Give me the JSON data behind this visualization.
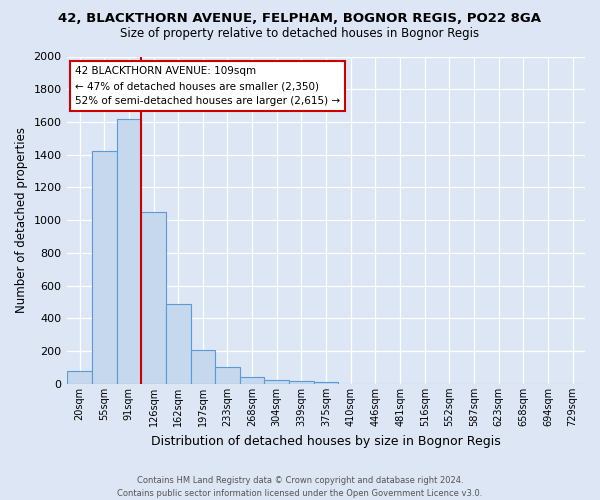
{
  "title": "42, BLACKTHORN AVENUE, FELPHAM, BOGNOR REGIS, PO22 8GA",
  "subtitle": "Size of property relative to detached houses in Bognor Regis",
  "xlabel": "Distribution of detached houses by size in Bognor Regis",
  "ylabel": "Number of detached properties",
  "footer_line1": "Contains HM Land Registry data © Crown copyright and database right 2024.",
  "footer_line2": "Contains public sector information licensed under the Open Government Licence v3.0.",
  "categories": [
    "20sqm",
    "55sqm",
    "91sqm",
    "126sqm",
    "162sqm",
    "197sqm",
    "233sqm",
    "268sqm",
    "304sqm",
    "339sqm",
    "375sqm",
    "410sqm",
    "446sqm",
    "481sqm",
    "516sqm",
    "552sqm",
    "587sqm",
    "623sqm",
    "658sqm",
    "694sqm",
    "729sqm"
  ],
  "values": [
    80,
    1420,
    1620,
    1050,
    490,
    205,
    105,
    45,
    25,
    15,
    10,
    0,
    0,
    0,
    0,
    0,
    0,
    0,
    0,
    0,
    0
  ],
  "bar_color": "#c5d8ee",
  "bar_edge_color": "#5b9bd5",
  "background_color": "#dce6f5",
  "grid_color": "#ffffff",
  "red_line_x": 2,
  "property_label": "42 BLACKTHORN AVENUE: 109sqm",
  "annotation_line1": "← 47% of detached houses are smaller (2,350)",
  "annotation_line2": "52% of semi-detached houses are larger (2,615) →",
  "annotation_box_color": "#ffffff",
  "annotation_box_edge_color": "#cc0000",
  "red_line_color": "#cc0000",
  "ylim": [
    0,
    2000
  ],
  "yticks": [
    0,
    200,
    400,
    600,
    800,
    1000,
    1200,
    1400,
    1600,
    1800,
    2000
  ]
}
